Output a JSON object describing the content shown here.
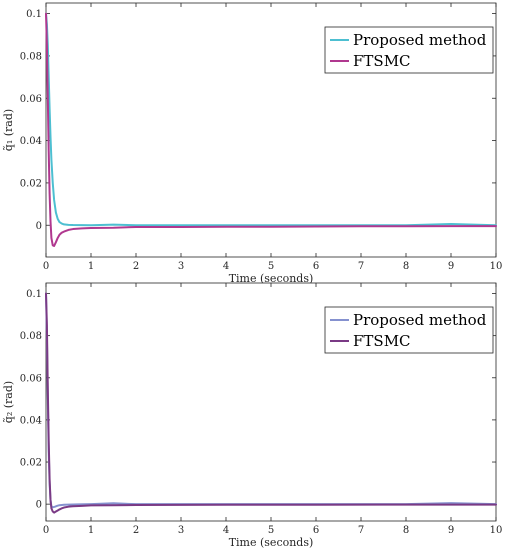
{
  "chart_data": [
    {
      "type": "line",
      "xlabel": "Time (seconds)",
      "ylabel": "q̃₁ (rad)",
      "xlim": [
        0,
        10
      ],
      "ylim": [
        -0.015,
        0.105
      ],
      "xticks": [
        0,
        1,
        2,
        3,
        4,
        5,
        6,
        7,
        8,
        9,
        10
      ],
      "yticks": [
        0,
        0.02,
        0.04,
        0.06,
        0.08,
        0.1
      ],
      "ytick_labels": [
        "0",
        "0.02",
        "0.04",
        "0.06",
        "0.08",
        "0.1"
      ],
      "grid": false,
      "legend_position": "top-right",
      "series": [
        {
          "name": "Proposed method",
          "color": "#4dbfd1",
          "x": [
            0,
            0.02,
            0.04,
            0.06,
            0.08,
            0.1,
            0.12,
            0.15,
            0.18,
            0.22,
            0.26,
            0.3,
            0.35,
            0.4,
            0.5,
            0.6,
            1.0,
            1.5,
            2.0,
            4.0,
            6.0,
            8.0,
            9.0,
            10.0
          ],
          "y": [
            0.1,
            0.095,
            0.085,
            0.07,
            0.055,
            0.042,
            0.031,
            0.02,
            0.012,
            0.006,
            0.003,
            0.0015,
            0.0008,
            0.0004,
            0.0002,
            0.0001,
            0.0,
            0.0003,
            0.0,
            0.0,
            0.0,
            0.0,
            0.0006,
            0.0
          ]
        },
        {
          "name": "FTSMC",
          "color": "#b0388f",
          "x": [
            0,
            0.02,
            0.04,
            0.06,
            0.08,
            0.1,
            0.12,
            0.15,
            0.18,
            0.22,
            0.26,
            0.3,
            0.35,
            0.4,
            0.5,
            0.6,
            0.8,
            1.0,
            1.5,
            2.0,
            3.0,
            4.0,
            5.0,
            6.0,
            7.0,
            8.0,
            9.0,
            10.0
          ],
          "y": [
            0.1,
            0.085,
            0.06,
            0.035,
            0.015,
            0.002,
            -0.006,
            -0.0095,
            -0.0098,
            -0.008,
            -0.006,
            -0.0045,
            -0.0035,
            -0.003,
            -0.0022,
            -0.0018,
            -0.0015,
            -0.0013,
            -0.0012,
            -0.0008,
            -0.0008,
            -0.0007,
            -0.0007,
            -0.0006,
            -0.0005,
            -0.0005,
            -0.0004,
            -0.0004
          ]
        }
      ]
    },
    {
      "type": "line",
      "xlabel": "Time (seconds)",
      "ylabel": "q̃₂ (rad)",
      "xlim": [
        0,
        10
      ],
      "ylim": [
        -0.008,
        0.105
      ],
      "xticks": [
        0,
        1,
        2,
        3,
        4,
        5,
        6,
        7,
        8,
        9,
        10
      ],
      "yticks": [
        0,
        0.02,
        0.04,
        0.06,
        0.08,
        0.1
      ],
      "ytick_labels": [
        "0",
        "0.02",
        "0.04",
        "0.06",
        "0.08",
        "0.1"
      ],
      "grid": false,
      "legend_position": "top-right",
      "series": [
        {
          "name": "Proposed method",
          "color": "#8591cf",
          "x": [
            0,
            0.02,
            0.04,
            0.06,
            0.08,
            0.1,
            0.12,
            0.15,
            0.2,
            0.25,
            0.3,
            0.4,
            0.5,
            0.7,
            1.0,
            1.5,
            2.0,
            4.0,
            6.0,
            8.0,
            9.0,
            10.0
          ],
          "y": [
            0.1,
            0.08,
            0.05,
            0.025,
            0.01,
            0.002,
            -0.001,
            -0.0015,
            -0.0012,
            -0.0008,
            -0.0005,
            -0.0003,
            -0.0002,
            -0.0001,
            0.0,
            0.0004,
            0.0,
            0.0,
            0.0,
            0.0,
            0.0005,
            0.0
          ]
        },
        {
          "name": "FTSMC",
          "color": "#7a3a85",
          "x": [
            0,
            0.02,
            0.04,
            0.06,
            0.08,
            0.1,
            0.12,
            0.15,
            0.18,
            0.22,
            0.26,
            0.3,
            0.35,
            0.4,
            0.5,
            0.6,
            0.8,
            1.0,
            1.5,
            2.0,
            4.0,
            6.0,
            8.0,
            10.0
          ],
          "y": [
            0.1,
            0.085,
            0.055,
            0.03,
            0.012,
            0.002,
            -0.002,
            -0.0035,
            -0.004,
            -0.0035,
            -0.003,
            -0.0025,
            -0.002,
            -0.0016,
            -0.0012,
            -0.001,
            -0.0008,
            -0.0006,
            -0.0005,
            -0.0004,
            -0.0003,
            -0.0003,
            -0.0002,
            -0.0002
          ]
        }
      ]
    }
  ]
}
